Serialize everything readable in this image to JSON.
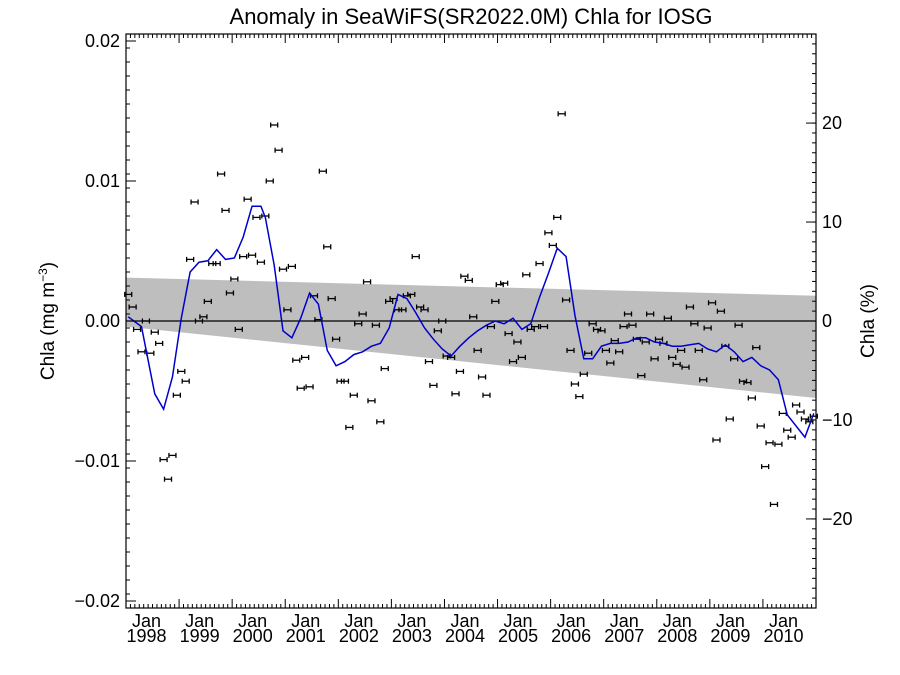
{
  "chart_data": {
    "type": "scatter",
    "title": "Anomaly in SeaWiFS(SR2022.0M) Chla for IOSG",
    "ylabel_left": "Chla (mg m",
    "ylabel_left_sup": "−3",
    "ylabel_left_close": ")",
    "ylabel_right": "Chla (%)",
    "x_start": "1998-01",
    "x_end": "2010-12",
    "ylim": [
      -0.0205,
      0.0205
    ],
    "y2lim": [
      -29.0,
      29.0
    ],
    "y_ticks": [
      -0.02,
      -0.01,
      0.0,
      0.01,
      0.02
    ],
    "y_tick_labels": [
      "−0.02",
      "−0.01",
      "0.00",
      "0.01",
      "0.02"
    ],
    "y2_ticks": [
      -20,
      -10,
      0,
      10,
      20
    ],
    "y2_tick_labels": [
      "−20",
      "−10",
      "0",
      "10",
      "20"
    ],
    "x_tick_labels": [
      {
        "month": "Jan",
        "year": "1998"
      },
      {
        "month": "Jan",
        "year": "1999"
      },
      {
        "month": "Jan",
        "year": "2000"
      },
      {
        "month": "Jan",
        "year": "2001"
      },
      {
        "month": "Jan",
        "year": "2002"
      },
      {
        "month": "Jan",
        "year": "2003"
      },
      {
        "month": "Jan",
        "year": "2004"
      },
      {
        "month": "Jan",
        "year": "2005"
      },
      {
        "month": "Jan",
        "year": "2006"
      },
      {
        "month": "Jan",
        "year": "2007"
      },
      {
        "month": "Jan",
        "year": "2008"
      },
      {
        "month": "Jan",
        "year": "2009"
      },
      {
        "month": "Jan",
        "year": "2010"
      }
    ],
    "zero_line": 0.0,
    "band": {
      "start": {
        "date": "1998-01",
        "lower": -0.0004,
        "upper": 0.0031
      },
      "end": {
        "date": "2010-12",
        "lower": -0.0055,
        "upper": 0.0018
      }
    },
    "monthly_anomaly": {
      "dates": [
        "1998-01",
        "1998-02",
        "1998-03",
        "1998-04",
        "1998-05",
        "1998-06",
        "1998-07",
        "1998-08",
        "1998-09",
        "1998-10",
        "1998-11",
        "1998-12",
        "1999-01",
        "1999-02",
        "1999-03",
        "1999-04",
        "1999-05",
        "1999-06",
        "1999-07",
        "1999-08",
        "1999-09",
        "1999-10",
        "1999-11",
        "1999-12",
        "2000-01",
        "2000-02",
        "2000-03",
        "2000-04",
        "2000-05",
        "2000-06",
        "2000-07",
        "2000-08",
        "2000-09",
        "2000-10",
        "2000-11",
        "2000-12",
        "2001-01",
        "2001-02",
        "2001-03",
        "2001-04",
        "2001-05",
        "2001-06",
        "2001-07",
        "2001-08",
        "2001-09",
        "2001-10",
        "2001-11",
        "2001-12",
        "2002-01",
        "2002-02",
        "2002-03",
        "2002-04",
        "2002-05",
        "2002-06",
        "2002-07",
        "2002-08",
        "2002-09",
        "2002-10",
        "2002-11",
        "2002-12",
        "2003-01",
        "2003-02",
        "2003-03",
        "2003-04",
        "2003-05",
        "2003-06",
        "2003-07",
        "2003-08",
        "2003-09",
        "2003-10",
        "2003-11",
        "2003-12",
        "2004-01",
        "2004-02",
        "2004-03",
        "2004-04",
        "2004-05",
        "2004-06",
        "2004-07",
        "2004-08",
        "2004-09",
        "2004-10",
        "2004-11",
        "2004-12",
        "2005-01",
        "2005-02",
        "2005-03",
        "2005-04",
        "2005-05",
        "2005-06",
        "2005-07",
        "2005-08",
        "2005-09",
        "2005-10",
        "2005-11",
        "2005-12",
        "2006-01",
        "2006-02",
        "2006-03",
        "2006-04",
        "2006-05",
        "2006-06",
        "2006-07",
        "2006-08",
        "2006-09",
        "2006-10",
        "2006-11",
        "2006-12",
        "2007-01",
        "2007-02",
        "2007-03",
        "2007-04",
        "2007-05",
        "2007-06",
        "2007-07",
        "2007-08",
        "2007-09",
        "2007-10",
        "2007-11",
        "2007-12",
        "2008-01",
        "2008-02",
        "2008-03",
        "2008-04",
        "2008-05",
        "2008-06",
        "2008-07",
        "2008-08",
        "2008-09",
        "2008-10",
        "2008-11",
        "2008-12",
        "2009-01",
        "2009-02",
        "2009-03",
        "2009-04",
        "2009-05",
        "2009-06",
        "2009-07",
        "2009-08",
        "2009-09",
        "2009-10",
        "2009-11",
        "2009-12",
        "2010-01",
        "2010-02",
        "2010-03",
        "2010-04",
        "2010-05",
        "2010-06",
        "2010-07",
        "2010-08",
        "2010-09",
        "2010-10",
        "2010-11",
        "2010-12"
      ],
      "values": [
        0.0019,
        0.001,
        -0.0006,
        -0.0022,
        0.0,
        -0.0023,
        -0.0008,
        -0.0016,
        -0.0099,
        -0.0113,
        -0.0096,
        -0.0053,
        -0.0036,
        -0.0043,
        0.0044,
        0.0085,
        0.0,
        0.0003,
        0.0014,
        0.0041,
        0.0041,
        0.0105,
        0.0079,
        0.002,
        0.003,
        -0.0006,
        0.0046,
        0.0087,
        0.0047,
        0.0074,
        0.0042,
        0.0075,
        0.01,
        0.014,
        0.0122,
        0.0037,
        0.0008,
        0.0039,
        -0.0028,
        -0.0048,
        -0.0026,
        -0.0047,
        0.0018,
        0.0001,
        0.0107,
        0.0053,
        0.0016,
        -0.0013,
        -0.0043,
        -0.0043,
        -0.0076,
        -0.0053,
        -0.0002,
        0.0005,
        0.0028,
        -0.0057,
        -0.0003,
        -0.0072,
        -0.0034,
        0.0014,
        0.0016,
        0.0008,
        0.0008,
        0.0018,
        0.0019,
        0.0046,
        0.001,
        0.0008,
        -0.0029,
        -0.0046,
        -0.0007,
        0.0,
        -0.0025,
        -0.0026,
        -0.0052,
        -0.0036,
        0.0032,
        0.0029,
        0.0003,
        -0.0021,
        -0.004,
        -0.0053,
        -0.0004,
        0.0014,
        0.0026,
        0.0027,
        -0.0009,
        -0.0029,
        -0.0015,
        -0.0026,
        0.0033,
        -0.0006,
        -0.0004,
        0.0041,
        -0.0004,
        0.0063,
        0.0054,
        0.0074,
        0.0148,
        0.0015,
        -0.0021,
        -0.0045,
        -0.0054,
        -0.0038,
        -0.0023,
        -0.0002,
        -0.0006,
        -0.0007,
        -0.0021,
        -0.003,
        -0.0014,
        -0.0022,
        -0.0004,
        0.0005,
        -0.0003,
        -0.0013,
        -0.0039,
        -0.0015,
        0.0005,
        -0.0027,
        -0.0013,
        -0.0016,
        0.0002,
        -0.0026,
        -0.0031,
        -0.0021,
        -0.0033,
        0.001,
        -0.0002,
        -0.0021,
        -0.0042,
        -0.0005,
        0.0013,
        -0.0085,
        0.0007,
        -0.0018,
        -0.007,
        -0.0027,
        -0.0003,
        -0.0043,
        -0.0044,
        -0.0055,
        -0.0019,
        -0.0075,
        -0.0104,
        -0.0087,
        -0.0131,
        -0.0088,
        -0.0066,
        -0.0078,
        -0.0083,
        -0.006,
        -0.0065,
        -0.007,
        -0.0072,
        -0.0068
      ]
    },
    "smoothed": {
      "color": "#0000cc",
      "dates": [
        "1998-01",
        "1998-04",
        "1998-07",
        "1998-09",
        "1998-11",
        "1999-01",
        "1999-03",
        "1999-05",
        "1999-07",
        "1999-09",
        "1999-11",
        "2000-01",
        "2000-03",
        "2000-05",
        "2000-07",
        "2000-08",
        "2000-10",
        "2000-12",
        "2001-02",
        "2001-04",
        "2001-06",
        "2001-08",
        "2001-10",
        "2001-12",
        "2002-02",
        "2002-04",
        "2002-06",
        "2002-08",
        "2002-10",
        "2002-12",
        "2003-02",
        "2003-04",
        "2003-06",
        "2003-08",
        "2003-10",
        "2003-12",
        "2004-02",
        "2004-04",
        "2004-06",
        "2004-08",
        "2004-10",
        "2004-12",
        "2005-02",
        "2005-04",
        "2005-06",
        "2005-08",
        "2005-10",
        "2005-12",
        "2006-02",
        "2006-04",
        "2006-06",
        "2006-08",
        "2006-10",
        "2006-12",
        "2007-02",
        "2007-04",
        "2007-06",
        "2007-08",
        "2007-10",
        "2007-12",
        "2008-02",
        "2008-04",
        "2008-06",
        "2008-08",
        "2008-10",
        "2008-12",
        "2009-02",
        "2009-04",
        "2009-06",
        "2009-08",
        "2009-10",
        "2009-12",
        "2010-02",
        "2010-04",
        "2010-06",
        "2010-08",
        "2010-10",
        "2010-12"
      ],
      "values": [
        0.0003,
        -0.0004,
        -0.0052,
        -0.0063,
        -0.004,
        0.0002,
        0.0035,
        0.0042,
        0.0043,
        0.0051,
        0.0044,
        0.0045,
        0.006,
        0.0082,
        0.0082,
        0.0074,
        0.004,
        -0.0007,
        -0.0012,
        0.0002,
        0.002,
        0.0012,
        -0.0021,
        -0.0032,
        -0.0029,
        -0.0024,
        -0.0022,
        -0.0018,
        -0.0016,
        -0.0005,
        0.0019,
        0.0016,
        0.0006,
        -0.0005,
        -0.0013,
        -0.002,
        -0.0025,
        -0.0018,
        -0.0012,
        -0.0007,
        -0.0003,
        0.0,
        -0.0002,
        0.0002,
        -0.0006,
        -0.0002,
        0.0017,
        0.0034,
        0.0052,
        0.0046,
        0.0004,
        -0.0027,
        -0.0027,
        -0.0018,
        -0.0016,
        -0.0016,
        -0.0015,
        -0.0012,
        -0.0012,
        -0.0015,
        -0.0016,
        -0.0018,
        -0.0018,
        -0.0017,
        -0.0016,
        -0.002,
        -0.0022,
        -0.0017,
        -0.0022,
        -0.0029,
        -0.0026,
        -0.0032,
        -0.0035,
        -0.0042,
        -0.0067,
        -0.0075,
        -0.0083,
        -0.0066
      ]
    }
  }
}
